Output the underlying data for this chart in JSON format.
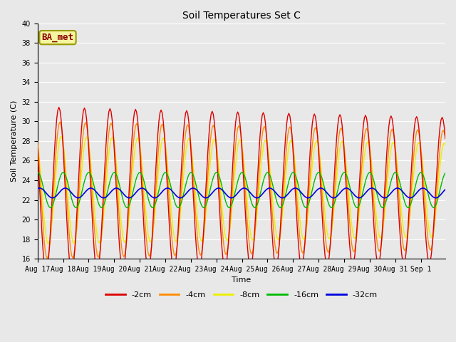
{
  "title": "Soil Temperatures Set C",
  "xlabel": "Time",
  "ylabel": "Soil Temperature (C)",
  "ylim": [
    16,
    40
  ],
  "annotation": "BA_met",
  "plot_bg": "#e8e8e8",
  "fig_bg": "#e8e8e8",
  "grid_color": "#ffffff",
  "lines": {
    "-2cm": {
      "color": "#dd0000",
      "lw": 1.0
    },
    "-4cm": {
      "color": "#ff8c00",
      "lw": 1.0
    },
    "-8cm": {
      "color": "#eeee00",
      "lw": 1.0
    },
    "-16cm": {
      "color": "#00bb00",
      "lw": 1.0
    },
    "-32cm": {
      "color": "#0000dd",
      "lw": 1.2
    }
  },
  "mean": 23.0,
  "amp_2cm": 8.5,
  "amp_4cm": 7.0,
  "amp_8cm": 5.5,
  "amp_16cm": 1.8,
  "amp_32cm": 0.5,
  "phase_2": 14,
  "phase_4": 15,
  "phase_8": 16,
  "phase_16": 18,
  "phase_32": 20,
  "title_fontsize": 10,
  "label_fontsize": 8,
  "tick_fontsize": 7,
  "legend_fontsize": 8
}
